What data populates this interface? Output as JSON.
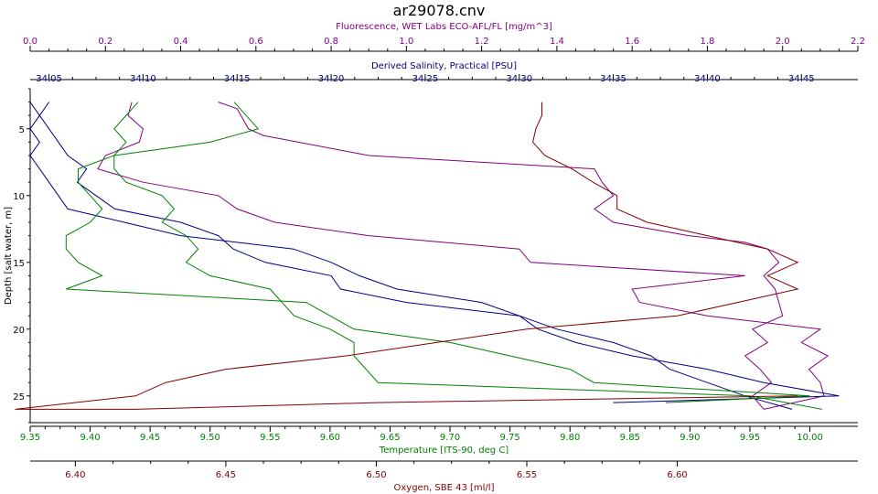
{
  "chart_data": {
    "type": "line",
    "title": "ar29078.cnv",
    "y_axis": {
      "label": "Depth [salt water, m]",
      "range": [
        2,
        27
      ],
      "ticks": [
        5,
        10,
        15,
        20,
        25
      ],
      "inverted": true,
      "color": "#000000"
    },
    "x_axes": [
      {
        "id": "fluor",
        "label": "Fluorescence, WET Labs ECO-AFL/FL [mg/m^3]",
        "range": [
          0.0,
          2.2
        ],
        "ticks": [
          "0.0",
          "0.2",
          "0.4",
          "0.6",
          "0.8",
          "1.0",
          "1.2",
          "1.4",
          "1.6",
          "1.8",
          "2.0",
          "2.2"
        ],
        "position": "top",
        "color": "#800080"
      },
      {
        "id": "sal",
        "label": "Derived Salinity, Practical [PSU]",
        "range": [
          34.04,
          34.48
        ],
        "ticks": [
          "34.05",
          "34.10",
          "34.15",
          "34.20",
          "34.25",
          "34.30",
          "34.35",
          "34.40",
          "34.45"
        ],
        "position": "top",
        "color": "#000080"
      },
      {
        "id": "temp",
        "label": "Temperature [ITS-90, deg C]",
        "range": [
          9.35,
          10.04
        ],
        "ticks": [
          "9.35",
          "9.40",
          "9.45",
          "9.50",
          "9.55",
          "9.60",
          "9.65",
          "9.70",
          "9.75",
          "9.80",
          "9.85",
          "9.90",
          "9.95",
          "10.00"
        ],
        "position": "bottom",
        "color": "#008000"
      },
      {
        "id": "oxy",
        "label": "Oxygen, SBE 43 [ml/l]",
        "range": [
          6.385,
          6.66
        ],
        "ticks": [
          "6.40",
          "6.45",
          "6.50",
          "6.55",
          "6.60"
        ],
        "position": "bottom",
        "color": "#800000"
      }
    ],
    "series": [
      {
        "axis": "fluor",
        "color": "#800080",
        "points": [
          [
            0.5,
            3
          ],
          [
            0.55,
            3.5
          ],
          [
            0.58,
            5
          ],
          [
            0.62,
            5.5
          ],
          [
            0.9,
            7
          ],
          [
            1.5,
            8
          ],
          [
            1.52,
            9
          ],
          [
            1.55,
            10
          ],
          [
            1.5,
            11
          ],
          [
            1.55,
            12
          ],
          [
            1.75,
            13
          ],
          [
            1.9,
            13.5
          ],
          [
            1.96,
            14
          ],
          [
            1.99,
            15
          ],
          [
            1.95,
            16
          ],
          [
            1.98,
            17
          ],
          [
            1.99,
            18
          ],
          [
            2.0,
            19
          ],
          [
            1.92,
            20
          ],
          [
            1.96,
            21
          ],
          [
            1.9,
            22
          ],
          [
            1.94,
            23
          ],
          [
            1.97,
            24
          ],
          [
            1.92,
            25
          ],
          [
            1.95,
            26
          ]
        ]
      },
      {
        "axis": "fluor",
        "color": "#800080",
        "points": [
          [
            0.27,
            3
          ],
          [
            0.26,
            4
          ],
          [
            0.3,
            5
          ],
          [
            0.29,
            6
          ],
          [
            0.2,
            7
          ],
          [
            0.18,
            8
          ],
          [
            0.3,
            9
          ],
          [
            0.5,
            10
          ],
          [
            0.55,
            11
          ],
          [
            0.65,
            12
          ],
          [
            0.9,
            13
          ],
          [
            1.3,
            14
          ],
          [
            1.33,
            15
          ],
          [
            1.9,
            16
          ],
          [
            1.6,
            17
          ],
          [
            1.62,
            18
          ],
          [
            1.8,
            19
          ],
          [
            2.1,
            20
          ],
          [
            2.05,
            21
          ],
          [
            2.12,
            22
          ],
          [
            2.07,
            23
          ],
          [
            2.1,
            24
          ],
          [
            2.11,
            25
          ],
          [
            1.95,
            26
          ]
        ]
      },
      {
        "axis": "sal",
        "color": "#000080",
        "points": [
          [
            34.05,
            3
          ],
          [
            34.045,
            4
          ],
          [
            34.05,
            5
          ],
          [
            34.055,
            6
          ],
          [
            34.06,
            7
          ],
          [
            34.07,
            8
          ],
          [
            34.065,
            9
          ],
          [
            34.075,
            10
          ],
          [
            34.085,
            11
          ],
          [
            34.12,
            12
          ],
          [
            34.14,
            13
          ],
          [
            34.148,
            14
          ],
          [
            34.165,
            15
          ],
          [
            34.2,
            16
          ],
          [
            34.205,
            17
          ],
          [
            34.24,
            18
          ],
          [
            34.3,
            19
          ],
          [
            34.32,
            20
          ],
          [
            34.35,
            21
          ],
          [
            34.37,
            22
          ],
          [
            34.38,
            23
          ],
          [
            34.4,
            24
          ],
          [
            34.42,
            25
          ],
          [
            34.445,
            26
          ]
        ]
      },
      {
        "axis": "sal",
        "color": "#000080",
        "points": [
          [
            34.04,
            3
          ],
          [
            34.045,
            4
          ],
          [
            34.04,
            5
          ],
          [
            34.045,
            6
          ],
          [
            34.04,
            7
          ],
          [
            34.045,
            8
          ],
          [
            34.05,
            9
          ],
          [
            34.055,
            10
          ],
          [
            34.06,
            11
          ],
          [
            34.09,
            12
          ],
          [
            34.12,
            13
          ],
          [
            34.18,
            14
          ],
          [
            34.2,
            15
          ],
          [
            34.215,
            16
          ],
          [
            34.235,
            17
          ],
          [
            34.28,
            18
          ],
          [
            34.3,
            19
          ],
          [
            34.31,
            20
          ],
          [
            34.33,
            21
          ],
          [
            34.36,
            22
          ],
          [
            34.4,
            23
          ],
          [
            34.43,
            24
          ],
          [
            34.47,
            25
          ],
          [
            34.35,
            25.5
          ]
        ]
      },
      {
        "axis": "temp",
        "color": "#008000",
        "points": [
          [
            9.44,
            3
          ],
          [
            9.43,
            4
          ],
          [
            9.42,
            5
          ],
          [
            9.43,
            6
          ],
          [
            9.42,
            7
          ],
          [
            9.39,
            8
          ],
          [
            9.39,
            9
          ],
          [
            9.4,
            10
          ],
          [
            9.41,
            11
          ],
          [
            9.4,
            12
          ],
          [
            9.38,
            13
          ],
          [
            9.38,
            14
          ],
          [
            9.39,
            15
          ],
          [
            9.41,
            16
          ],
          [
            9.38,
            17
          ],
          [
            9.58,
            18
          ],
          [
            9.6,
            19
          ],
          [
            9.62,
            20
          ],
          [
            9.7,
            21
          ],
          [
            9.75,
            22
          ],
          [
            9.8,
            23
          ],
          [
            9.82,
            24
          ],
          [
            10.0,
            25
          ],
          [
            9.88,
            25.5
          ]
        ]
      },
      {
        "axis": "temp",
        "color": "#008000",
        "points": [
          [
            9.52,
            3
          ],
          [
            9.53,
            4
          ],
          [
            9.54,
            5
          ],
          [
            9.5,
            6
          ],
          [
            9.42,
            7
          ],
          [
            9.42,
            8
          ],
          [
            9.43,
            9
          ],
          [
            9.46,
            10
          ],
          [
            9.47,
            11
          ],
          [
            9.46,
            12
          ],
          [
            9.48,
            13
          ],
          [
            9.49,
            14
          ],
          [
            9.48,
            15
          ],
          [
            9.5,
            16
          ],
          [
            9.55,
            17
          ],
          [
            9.56,
            18
          ],
          [
            9.57,
            19
          ],
          [
            9.6,
            20
          ],
          [
            9.62,
            21
          ],
          [
            9.62,
            22
          ],
          [
            9.63,
            23
          ],
          [
            9.64,
            24
          ],
          [
            9.95,
            25
          ],
          [
            10.01,
            26
          ]
        ]
      },
      {
        "axis": "oxy",
        "color": "#800000",
        "points": [
          [
            6.555,
            3
          ],
          [
            6.555,
            4
          ],
          [
            6.553,
            5
          ],
          [
            6.552,
            6
          ],
          [
            6.556,
            7
          ],
          [
            6.565,
            8
          ],
          [
            6.572,
            9
          ],
          [
            6.58,
            10
          ],
          [
            6.58,
            11
          ],
          [
            6.59,
            12
          ],
          [
            6.61,
            13
          ],
          [
            6.63,
            14
          ],
          [
            6.64,
            15
          ],
          [
            6.63,
            16
          ],
          [
            6.64,
            17
          ],
          [
            6.62,
            18
          ],
          [
            6.6,
            19
          ],
          [
            6.55,
            20
          ],
          [
            6.52,
            21
          ],
          [
            6.49,
            22
          ],
          [
            6.45,
            23
          ],
          [
            6.43,
            24
          ],
          [
            6.42,
            25
          ],
          [
            6.38,
            26
          ],
          [
            6.42,
            26
          ],
          [
            6.5,
            25.5
          ],
          [
            6.64,
            25
          ]
        ]
      }
    ]
  }
}
